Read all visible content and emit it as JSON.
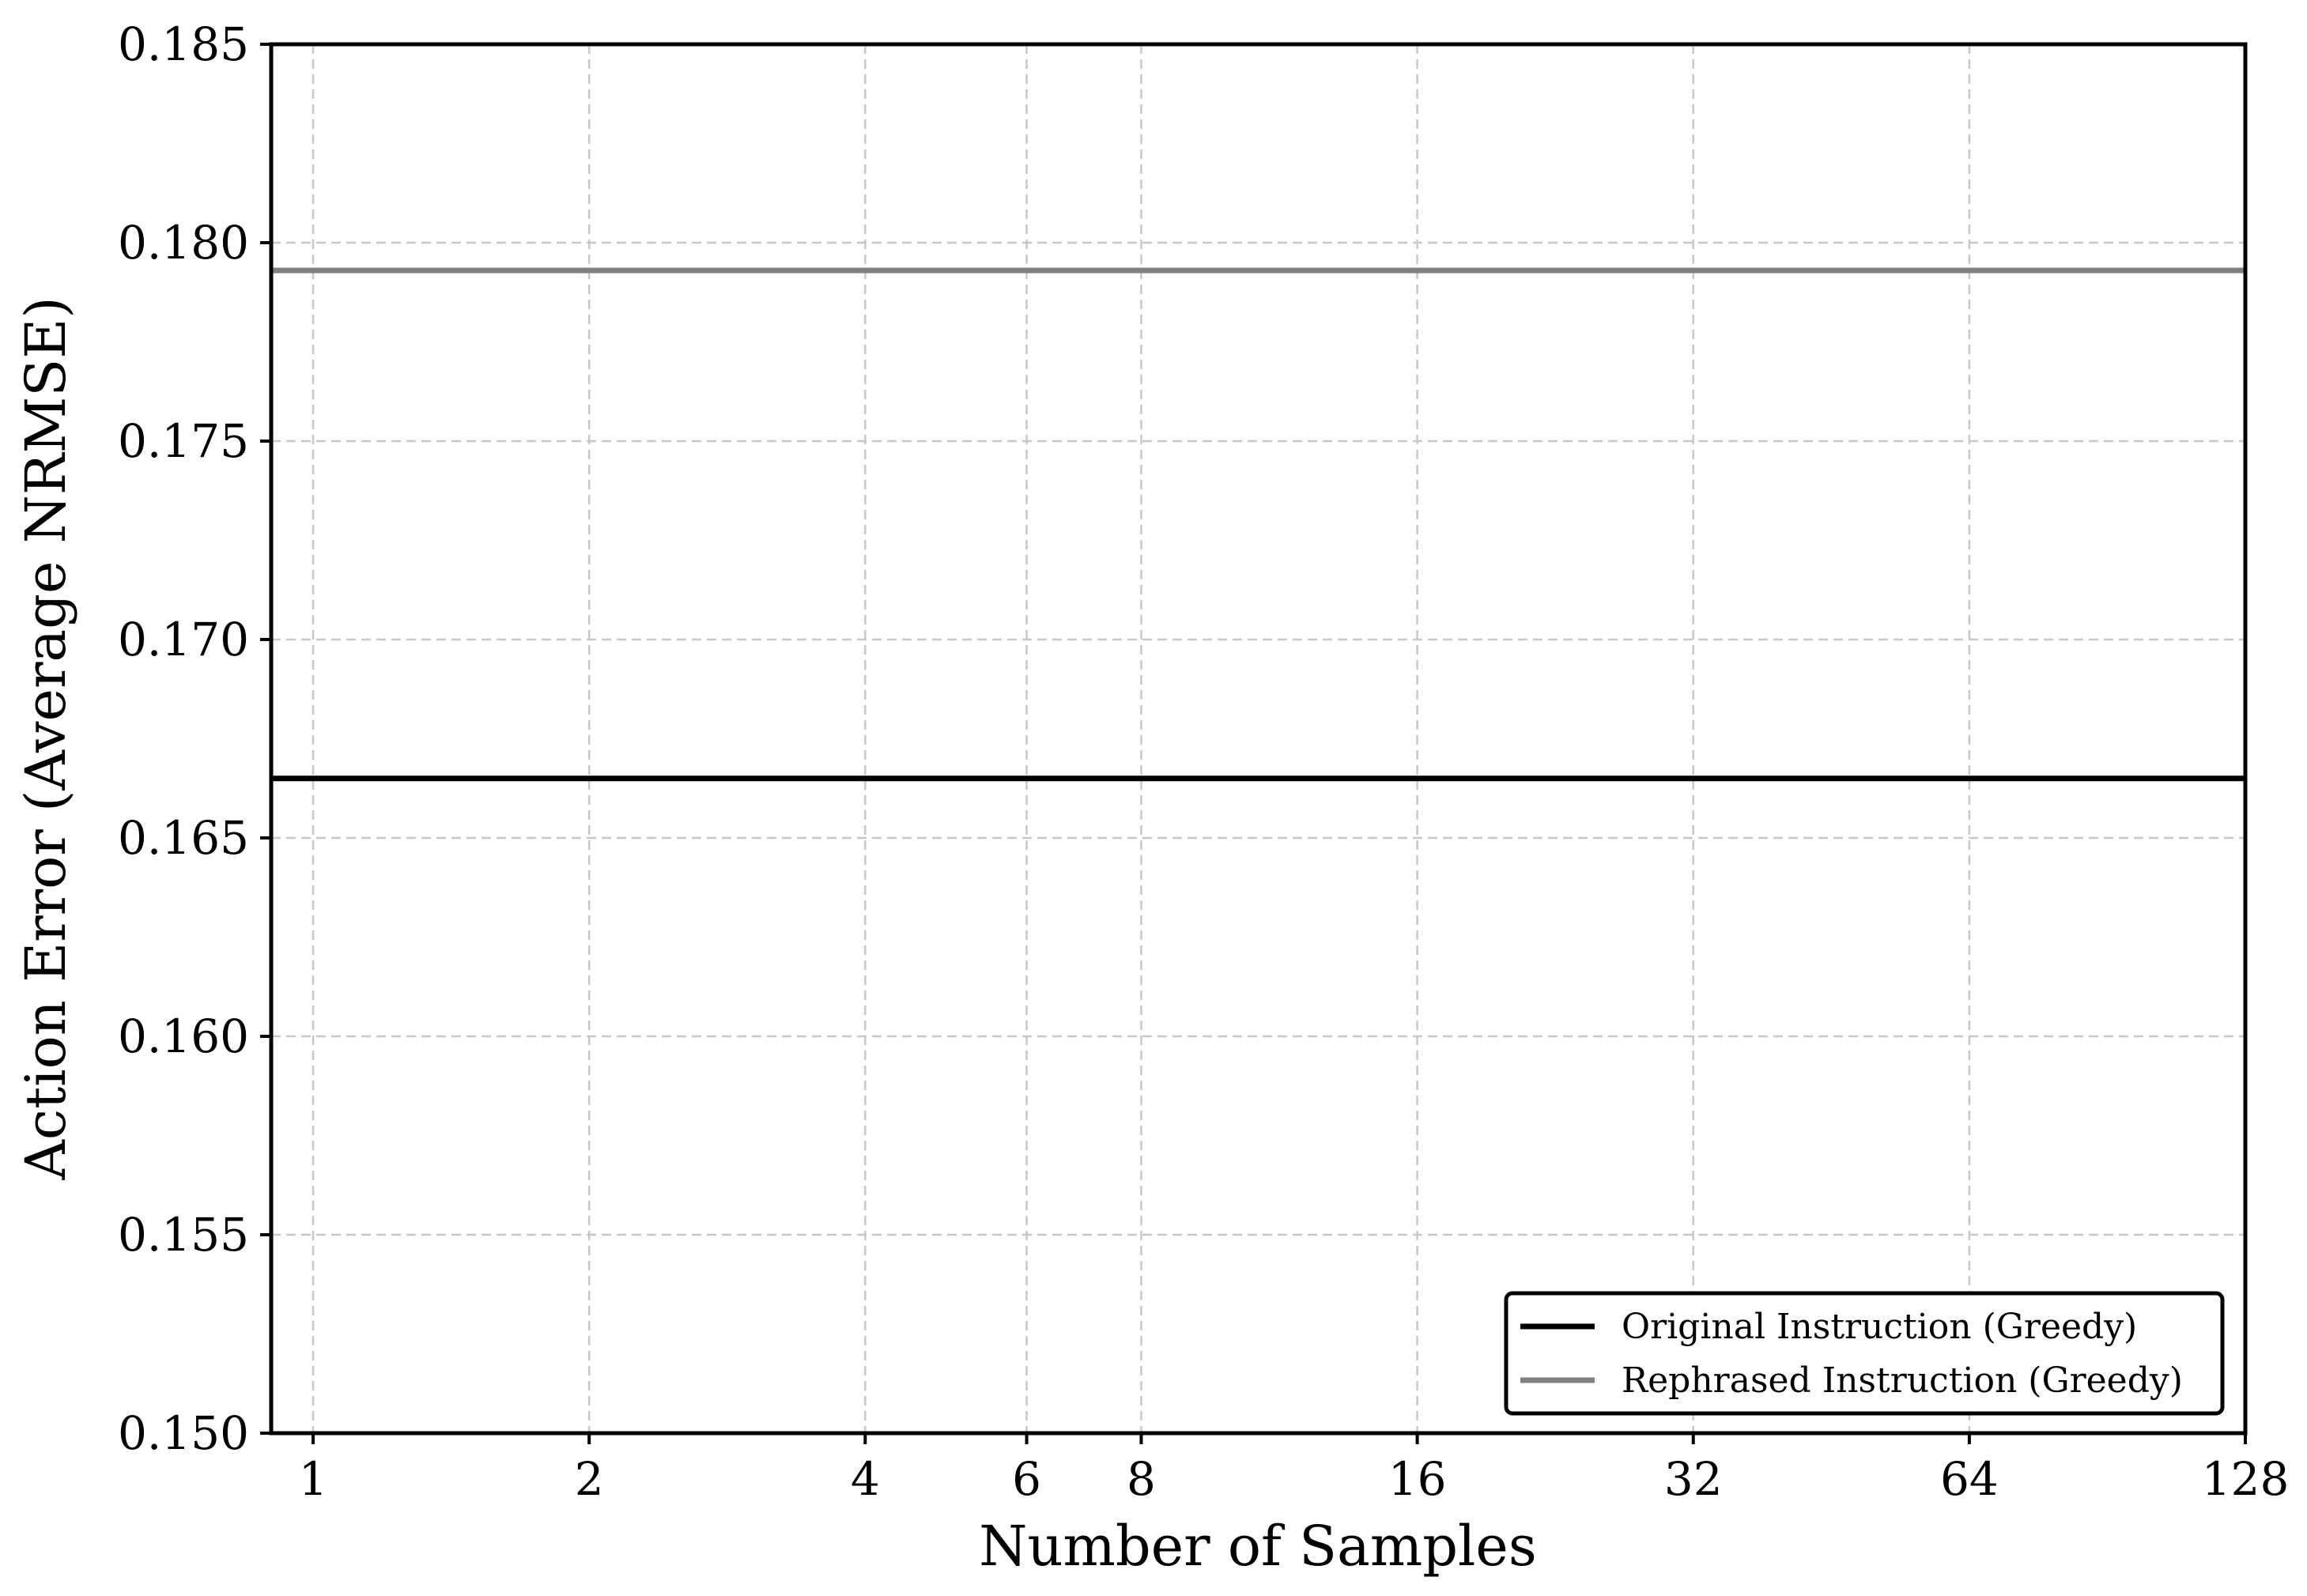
{
  "chart_data": {
    "type": "line",
    "xlabel": "Number of Samples",
    "ylabel": "Action Error (Average NRMSE)",
    "x_scale": "log2",
    "xlim": [
      0.9,
      128
    ],
    "ylim": [
      0.15,
      0.185
    ],
    "x_ticks": [
      1,
      2,
      4,
      6,
      8,
      16,
      32,
      64,
      128
    ],
    "x_tick_labels": [
      "1",
      "2",
      "4",
      "6",
      "8",
      "16",
      "32",
      "64",
      "128"
    ],
    "y_ticks": [
      0.15,
      0.155,
      0.16,
      0.165,
      0.17,
      0.175,
      0.18,
      0.185
    ],
    "y_tick_labels": [
      "0.150",
      "0.155",
      "0.160",
      "0.165",
      "0.170",
      "0.175",
      "0.180",
      "0.185"
    ],
    "grid": true,
    "legend_position": "bottom-right",
    "series": [
      {
        "name": "Original Instruction (Greedy)",
        "style": "horizontal-line",
        "y": 0.1665,
        "color": "#000000"
      },
      {
        "name": "Rephrased Instruction (Greedy)",
        "style": "horizontal-line",
        "y": 0.1793,
        "color": "#808080"
      }
    ]
  }
}
